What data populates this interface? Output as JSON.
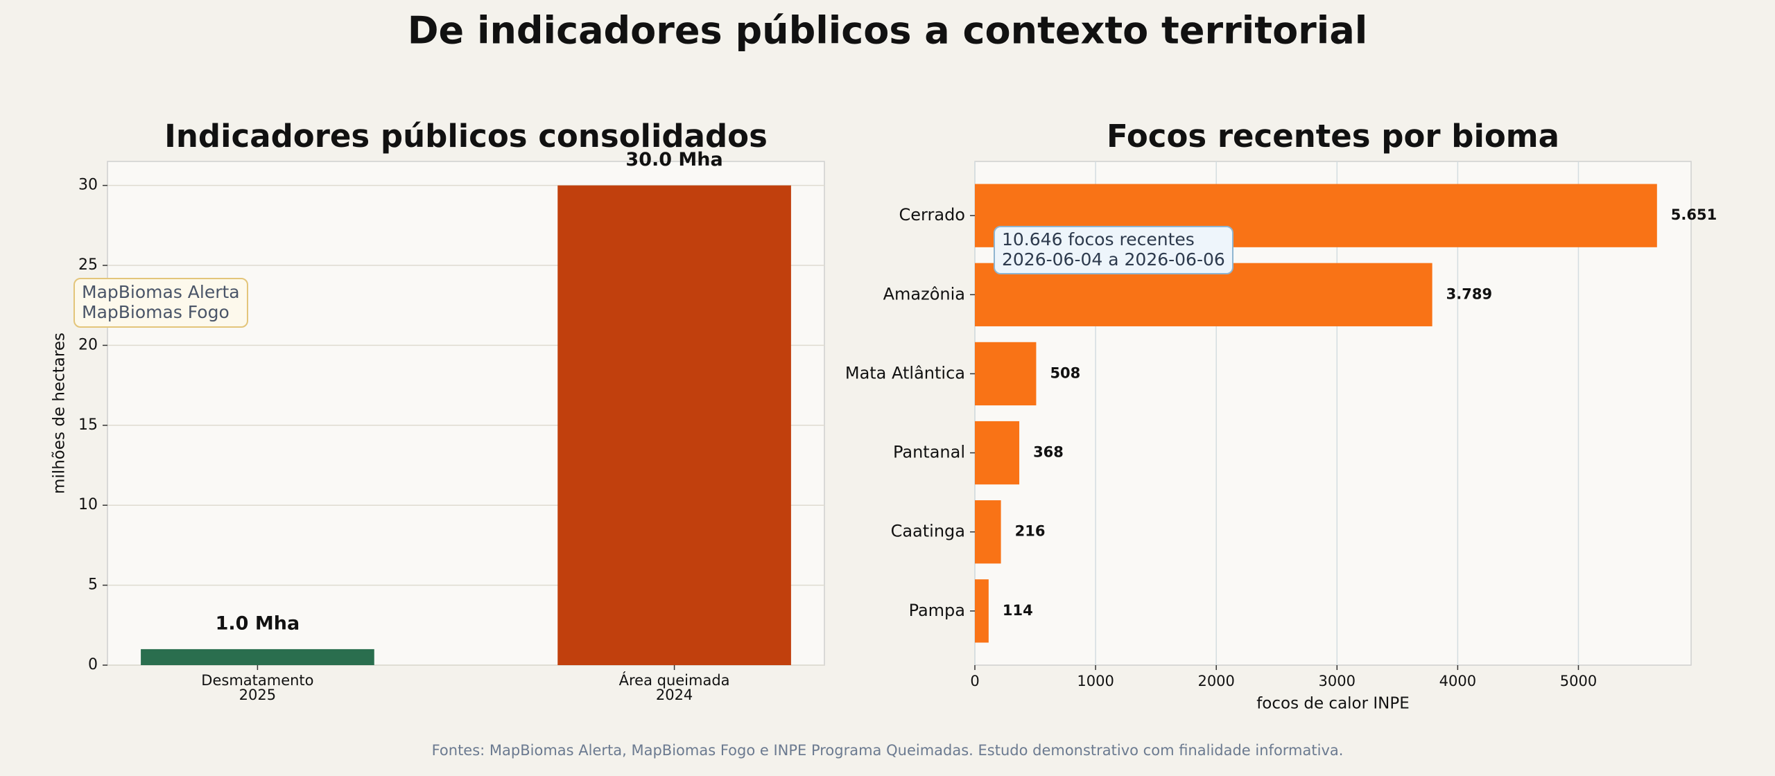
{
  "title": "De indicadores públicos a contexto territorial",
  "source": "Fontes: MapBiomas Alerta, MapBiomas Fogo e INPE Programa Queimadas. Estudo demonstrativo com finalidade informativa.",
  "chart_data": [
    {
      "type": "bar",
      "title": "Indicadores públicos consolidados",
      "categories": [
        "Desmatamento\n2025",
        "Área queimada\n2024"
      ],
      "values": [
        1.0,
        30.0
      ],
      "value_labels": [
        "1.0 Mha",
        "30.0 Mha"
      ],
      "colors": [
        "#2a6e4e",
        "#c1400d"
      ],
      "ylabel": "milhões de hectares",
      "ylim": [
        0,
        31.5
      ],
      "yticks": [
        0,
        5,
        10,
        15,
        20,
        25,
        30
      ],
      "grid": true,
      "annotation": "MapBiomas Alerta\nMapBiomas Fogo"
    },
    {
      "type": "barh",
      "title": "Focos recentes por bioma",
      "categories": [
        "Cerrado",
        "Amazônia",
        "Mata Atlântica",
        "Pantanal",
        "Caatinga",
        "Pampa"
      ],
      "values": [
        5651,
        3789,
        508,
        368,
        216,
        114
      ],
      "value_labels": [
        "5.651",
        "3.789",
        "508",
        "368",
        "216",
        "114"
      ],
      "color": "#f97316",
      "xlabel": "focos de calor INPE",
      "xlim": [
        0,
        5933.55
      ],
      "xticks": [
        0,
        1000,
        2000,
        3000,
        4000,
        5000
      ],
      "grid": true,
      "annotation": "10.646 focos recentes\n2026-06-04 a 2026-06-06"
    }
  ]
}
